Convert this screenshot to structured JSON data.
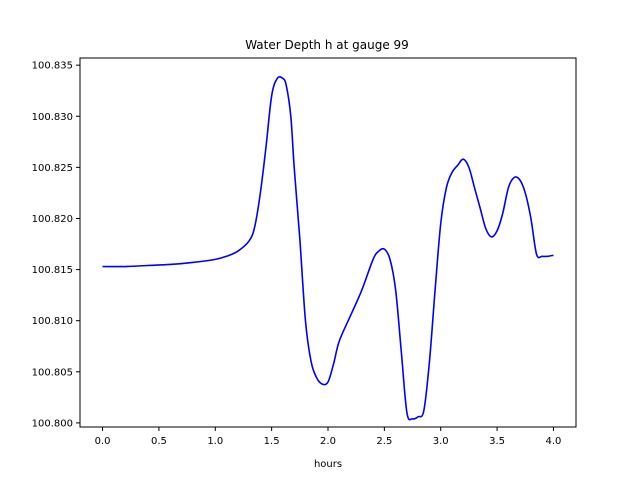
{
  "chart_data": {
    "type": "line",
    "title": "Water Depth h at gauge 99",
    "xlabel": "hours",
    "ylabel": "",
    "xlim": [
      -0.2,
      4.2
    ],
    "ylim": [
      100.7996,
      100.8357
    ],
    "x_ticks": [
      0.0,
      0.5,
      1.0,
      1.5,
      2.0,
      2.5,
      3.0,
      3.5,
      4.0
    ],
    "x_tick_labels": [
      "0.0",
      "0.5",
      "1.0",
      "1.5",
      "2.0",
      "2.5",
      "3.0",
      "3.5",
      "4.0"
    ],
    "y_ticks": [
      100.8,
      100.805,
      100.81,
      100.815,
      100.82,
      100.825,
      100.83,
      100.835
    ],
    "y_tick_labels": [
      "100.800",
      "100.805",
      "100.810",
      "100.815",
      "100.820",
      "100.825",
      "100.830",
      "100.835"
    ],
    "grid": false,
    "series": [
      {
        "color": "#0000ff",
        "x": [
          0.0,
          0.2,
          0.4,
          0.6,
          0.8,
          1.0,
          1.1,
          1.2,
          1.3,
          1.35,
          1.4,
          1.45,
          1.5,
          1.55,
          1.6,
          1.63,
          1.67,
          1.7,
          1.75,
          1.8,
          1.85,
          1.9,
          1.95,
          2.0,
          2.05,
          2.1,
          2.2,
          2.3,
          2.4,
          2.45,
          2.5,
          2.55,
          2.6,
          2.65,
          2.7,
          2.75,
          2.8,
          2.85,
          2.9,
          2.95,
          3.0,
          3.05,
          3.1,
          3.15,
          3.2,
          3.25,
          3.3,
          3.35,
          3.4,
          3.45,
          3.5,
          3.55,
          3.6,
          3.65,
          3.7,
          3.75,
          3.8,
          3.85,
          3.9,
          3.95,
          4.0
        ],
        "y": [
          100.8153,
          100.8153,
          100.8154,
          100.8155,
          100.8157,
          100.816,
          100.8163,
          100.8168,
          100.8178,
          100.8192,
          100.8225,
          100.827,
          100.832,
          100.8337,
          100.8337,
          100.833,
          100.83,
          100.825,
          100.818,
          100.81,
          100.806,
          100.8044,
          100.8038,
          100.804,
          100.8058,
          100.808,
          100.8105,
          100.813,
          100.816,
          100.8168,
          100.817,
          100.816,
          100.813,
          100.807,
          100.801,
          100.8004,
          100.8006,
          100.8012,
          100.806,
          100.813,
          100.8195,
          100.823,
          100.8245,
          100.8252,
          100.8258,
          100.825,
          100.823,
          100.821,
          100.819,
          100.8182,
          100.8188,
          100.8205,
          100.823,
          100.824,
          100.8238,
          100.8225,
          100.82,
          100.8165,
          100.8163,
          100.8163,
          100.8164
        ]
      }
    ]
  }
}
